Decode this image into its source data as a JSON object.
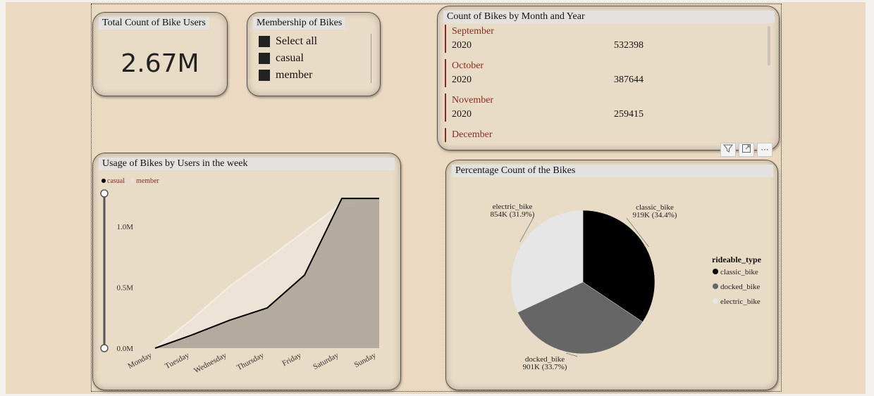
{
  "kpi": {
    "title": "Total Count of Bike Users",
    "value": "2.67M"
  },
  "slicer": {
    "title": "Membership of Bikes",
    "items": [
      "Select all",
      "casual",
      "member"
    ]
  },
  "table": {
    "title": "Count of Bikes by Month and Year",
    "groups": [
      {
        "month": "September",
        "year": "2020",
        "count": "532398"
      },
      {
        "month": "October",
        "year": "2020",
        "count": "387644"
      },
      {
        "month": "November",
        "year": "2020",
        "count": "259415"
      },
      {
        "month": "December",
        "year": "",
        "count": ""
      }
    ]
  },
  "visual_header": {
    "filter_icon": "filter-icon",
    "focus_icon": "focus-mode-icon",
    "more_icon": "more-options-icon",
    "more_label": "···"
  },
  "colors": {
    "casual": "#000000",
    "member": "#ede4d8",
    "classic_bike": "#000000",
    "docked_bike": "#666666",
    "electric_bike": "#e6e6e6",
    "title_bg": "#e3e2e0",
    "month_accent": "#8b2a20"
  },
  "chart_data": [
    {
      "type": "area",
      "title": "Usage of Bikes by Users in the week",
      "categories": [
        "Monday",
        "Tuesday",
        "Wednesday",
        "Thursday",
        "Friday",
        "Saturday",
        "Sunday"
      ],
      "series": [
        {
          "name": "casual",
          "values": [
            0,
            110000,
            230000,
            330000,
            600000,
            1230000,
            1230000
          ]
        },
        {
          "name": "member",
          "values": [
            0,
            240000,
            510000,
            730000,
            960000,
            1190000,
            1210000
          ]
        }
      ],
      "yticks": [
        "0.0M",
        "0.5M",
        "1.0M"
      ],
      "ylim": [
        0,
        1300000
      ],
      "legend_position": "top-left"
    },
    {
      "type": "pie",
      "title": "Percentage Count of the Bikes",
      "legend_title": "rideable_type",
      "slices": [
        {
          "name": "classic_bike",
          "value": 919000,
          "label": "919K (34.4%)"
        },
        {
          "name": "docked_bike",
          "value": 901000,
          "label": "901K (33.7%)"
        },
        {
          "name": "electric_bike",
          "value": 854000,
          "label": "854K (31.9%)"
        }
      ],
      "legend_position": "right"
    }
  ]
}
